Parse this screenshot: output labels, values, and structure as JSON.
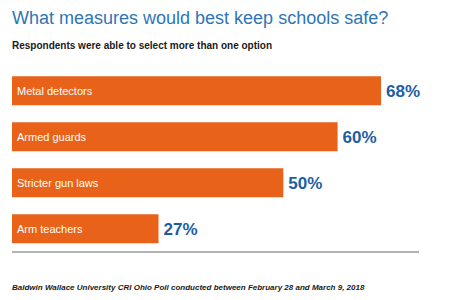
{
  "chart_data": {
    "type": "bar",
    "orientation": "horizontal",
    "title": "What measures would best keep schools safe?",
    "subtitle": "Respondents were able to select more than one option",
    "footnote": "Baldwin Wallace University CRI Ohio Poll conducted between February 28 and March 9, 2018",
    "categories": [
      "Metal detectors",
      "Armed guards",
      "Stricter gun laws",
      "Arm teachers"
    ],
    "values": [
      68,
      60,
      50,
      27
    ],
    "value_labels": [
      "68%",
      "60%",
      "50%",
      "27%"
    ],
    "color": "#E8621A",
    "xlim": [
      0,
      75
    ],
    "data_labels": true,
    "tick_labels": false,
    "grid": false
  }
}
